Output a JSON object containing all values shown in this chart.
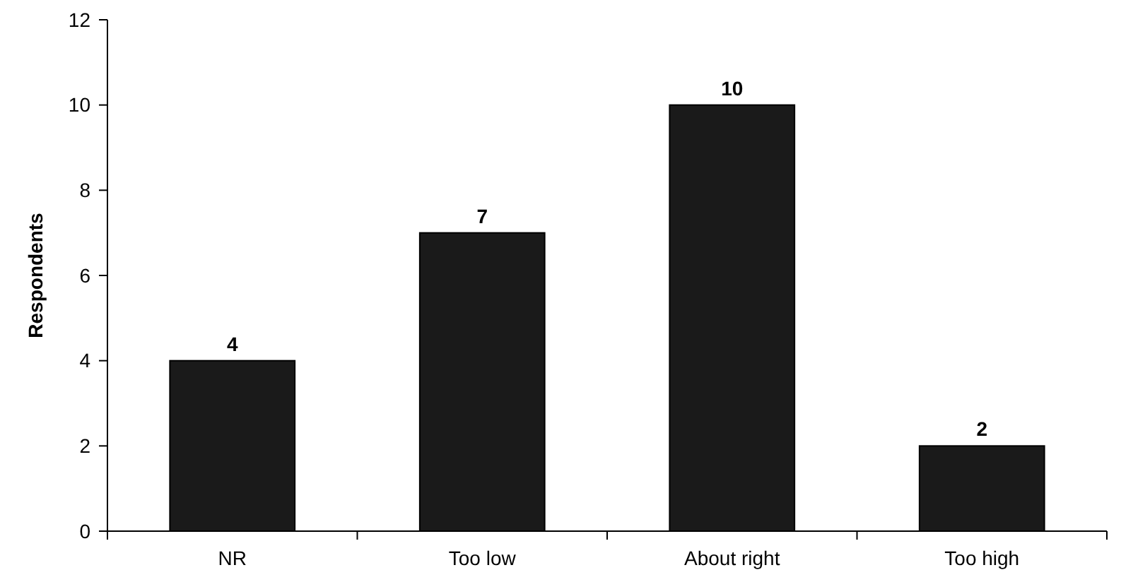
{
  "chart_data": {
    "type": "bar",
    "ylabel": "Respondents",
    "categories": [
      "NR",
      "Too low",
      "About right",
      "Too high"
    ],
    "values": [
      4,
      7,
      10,
      2
    ],
    "color": "#1a1a1a",
    "ylim": [
      0,
      12
    ],
    "yticks": [
      0,
      2,
      4,
      6,
      8,
      10,
      12
    ],
    "data_labels": true
  }
}
